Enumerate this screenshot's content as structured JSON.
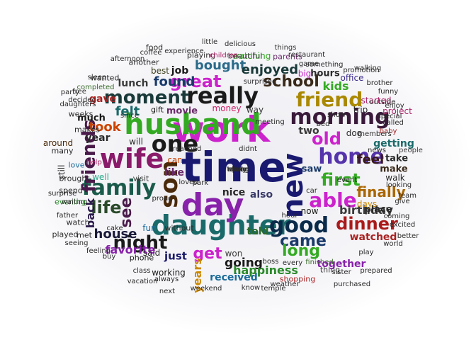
{
  "words": [
    {
      "text": "time",
      "color": "#191970"
    },
    {
      "text": "work",
      "color": "#cc22cc"
    },
    {
      "text": "husband",
      "color": "#33aa22"
    },
    {
      "text": "daughter",
      "color": "#1a6a6a"
    },
    {
      "text": "day",
      "color": "#8822aa"
    },
    {
      "text": "new",
      "color": "#191970"
    },
    {
      "text": "son",
      "color": "#4a2a0a"
    },
    {
      "text": "wife",
      "color": "#8a1a6a"
    },
    {
      "text": "family",
      "color": "#1a5a4a"
    },
    {
      "text": "one",
      "color": "#1a1a1a"
    },
    {
      "text": "really",
      "color": "#1a1a1a"
    },
    {
      "text": "morning",
      "color": "#3a1a3a"
    },
    {
      "text": "home",
      "color": "#5533aa"
    },
    {
      "text": "good",
      "color": "#0a2a4a"
    },
    {
      "text": "moment",
      "color": "#1a3a3a"
    },
    {
      "text": "friend",
      "color": "#aa8800"
    },
    {
      "text": "able",
      "color": "#cc22cc"
    },
    {
      "text": "friends",
      "color": "#4a1a4a"
    },
    {
      "text": "old",
      "color": "#cc22cc"
    },
    {
      "text": "first",
      "color": "#33aa22"
    },
    {
      "text": "night",
      "color": "#1a1a1a"
    },
    {
      "text": "great",
      "color": "#cc22cc"
    },
    {
      "text": "dinner",
      "color": "#aa1a1a"
    },
    {
      "text": "life",
      "color": "#2a4a2a"
    },
    {
      "text": "see",
      "color": "#4a1a4a"
    },
    {
      "text": "came",
      "color": "#1a3a6a"
    },
    {
      "text": "long",
      "color": "#33aa22"
    },
    {
      "text": "school",
      "color": "#3a2a1a"
    },
    {
      "text": "get",
      "color": "#cc22cc"
    },
    {
      "text": "finally",
      "color": "#aa6600"
    },
    {
      "text": "house",
      "color": "#1a1a3a"
    },
    {
      "text": "feel",
      "color": "#3a1a1a"
    },
    {
      "text": "found",
      "color": "#1a3a6a"
    },
    {
      "text": "bought",
      "color": "#2a6a8a"
    },
    {
      "text": "enjoyed",
      "color": "#1a3a3a"
    },
    {
      "text": "felt",
      "color": "#1a6a6a"
    },
    {
      "text": "took",
      "color": "#cc4400"
    },
    {
      "text": "birthday",
      "color": "#3a3a3a"
    },
    {
      "text": "going",
      "color": "#1a1a1a"
    },
    {
      "text": "happiness",
      "color": "#2a8a2a"
    },
    {
      "text": "years",
      "color": "#cc8800"
    },
    {
      "text": "kids",
      "color": "#33aa22"
    },
    {
      "text": "favorite",
      "color": "#8822aa"
    },
    {
      "text": "back",
      "color": "#2a1a4a"
    },
    {
      "text": "year",
      "color": "#2a2a2a"
    },
    {
      "text": "two",
      "color": "#3a3a3a"
    },
    {
      "text": "getting",
      "color": "#1a6a6a"
    },
    {
      "text": "together",
      "color": "#8822aa"
    },
    {
      "text": "watched",
      "color": "#aa2222"
    },
    {
      "text": "received",
      "color": "#1a6a9a"
    },
    {
      "text": "nice",
      "color": "#2a2a2a"
    },
    {
      "text": "also",
      "color": "#3a3a6a"
    },
    {
      "text": "just",
      "color": "#1a1a6a"
    },
    {
      "text": "told",
      "color": "#2a6a2a"
    },
    {
      "text": "lunch",
      "color": "#3a3a3a"
    },
    {
      "text": "job",
      "color": "#1a1a1a"
    },
    {
      "text": "best",
      "color": "#3a3a1a"
    },
    {
      "text": "hours",
      "color": "#2a2a2a"
    },
    {
      "text": "saw",
      "color": "#1a3a6a"
    },
    {
      "text": "make",
      "color": "#3a2a1a"
    },
    {
      "text": "take",
      "color": "#2a2a2a"
    },
    {
      "text": "place",
      "color": "#2a2a2a"
    },
    {
      "text": "days",
      "color": "#cc8800"
    },
    {
      "text": "movie",
      "color": "#6a2a6a"
    },
    {
      "text": "gave",
      "color": "#aa2222"
    },
    {
      "text": "much",
      "color": "#1a1a1a"
    },
    {
      "text": "like",
      "color": "#6a2a6a"
    },
    {
      "text": "will",
      "color": "#2a2a2a"
    },
    {
      "text": "said",
      "color": "#2a2a2a"
    },
    {
      "text": "working",
      "color": "#1a1a1a"
    },
    {
      "text": "fun",
      "color": "#1a6a9a"
    },
    {
      "text": "now",
      "color": "#1a1a1a"
    },
    {
      "text": "started",
      "color": "#aa2266"
    },
    {
      "text": "office",
      "color": "#3a2a8a"
    },
    {
      "text": "big",
      "color": "#cc22cc"
    },
    {
      "text": "watching",
      "color": "#33aa22"
    },
    {
      "text": "playing",
      "color": "#2a2a2a"
    },
    {
      "text": "beautiful",
      "color": "#3a3a3a"
    },
    {
      "text": "dog",
      "color": "#2a2a2a"
    },
    {
      "text": "makes",
      "color": "#2a2a2a"
    },
    {
      "text": "around",
      "color": "#4a2a0a"
    },
    {
      "text": "many",
      "color": "#2a2a2a"
    },
    {
      "text": "love",
      "color": "#1a6a9a"
    },
    {
      "text": "well",
      "color": "#2aaa8a"
    },
    {
      "text": "still",
      "color": "#2a2a2a"
    },
    {
      "text": "can",
      "color": "#cc4400"
    },
    {
      "text": "visit",
      "color": "#3a3a3a"
    },
    {
      "text": "walk",
      "color": "#2a2a2a"
    },
    {
      "text": "trip",
      "color": "#2a2a2a"
    },
    {
      "text": "money",
      "color": "#cc2266"
    },
    {
      "text": "way",
      "color": "#3a3a3a"
    },
    {
      "text": "gift",
      "color": "#1a1a1a"
    },
    {
      "text": "weeks",
      "color": "#2a2a2a"
    },
    {
      "text": "project",
      "color": "#aa2266"
    },
    {
      "text": "phone",
      "color": "#1a1a1a"
    },
    {
      "text": "won",
      "color": "#3a3a3a"
    },
    {
      "text": "thing",
      "color": "#3a3a3a"
    },
    {
      "text": "shopping",
      "color": "#aa2222"
    },
    {
      "text": "finished",
      "color": "#3a6a2a"
    },
    {
      "text": "without",
      "color": "#2a2a2a"
    },
    {
      "text": "met",
      "color": "#2a2a2a"
    },
    {
      "text": "watch",
      "color": "#2a2a2a"
    },
    {
      "text": "played",
      "color": "#2a2a2a"
    },
    {
      "text": "evening",
      "color": "#2a8a2a"
    },
    {
      "text": "spend",
      "color": "#2a2a2a"
    },
    {
      "text": "brought",
      "color": "#2a2a2a"
    },
    {
      "text": "baby",
      "color": "#aa2222"
    },
    {
      "text": "people",
      "color": "#3a3a3a"
    },
    {
      "text": "give",
      "color": "#2a2a2a"
    },
    {
      "text": "coming",
      "color": "#2a2a2a"
    },
    {
      "text": "team",
      "color": "#2a2a2a"
    },
    {
      "text": "party",
      "color": "#2a2a2a"
    },
    {
      "text": "completed",
      "color": "#3a6a2a"
    },
    {
      "text": "parents",
      "color": "#6a2a6a"
    },
    {
      "text": "game",
      "color": "#2a2a2a"
    },
    {
      "text": "something",
      "color": "#2a2a2a"
    },
    {
      "text": "things",
      "color": "#3a3a3a"
    },
    {
      "text": "another",
      "color": "#2a2a2a"
    },
    {
      "text": "coffee",
      "color": "#2a2a2a"
    },
    {
      "text": "food",
      "color": "#2a2a2a"
    },
    {
      "text": "wanted",
      "color": "#2a2a2a"
    },
    {
      "text": "help",
      "color": "#aa2266"
    },
    {
      "text": "since",
      "color": "#2a2a2a"
    },
    {
      "text": "know",
      "color": "#2a2a2a"
    },
    {
      "text": "children",
      "color": "#aa2266"
    },
    {
      "text": "weekend",
      "color": "#2a2a2a"
    },
    {
      "text": "always",
      "color": "#2a2a2a"
    },
    {
      "text": "seeing",
      "color": "#2a2a2a"
    },
    {
      "text": "feeling",
      "color": "#2a2a2a"
    },
    {
      "text": "class",
      "color": "#2a2a2a"
    },
    {
      "text": "sister",
      "color": "#2a2a2a"
    },
    {
      "text": "special",
      "color": "#2a2a2a"
    },
    {
      "text": "event",
      "color": "#2a2a2a"
    },
    {
      "text": "hour",
      "color": "#2a2a2a"
    },
    {
      "text": "car",
      "color": "#2a2a2a"
    },
    {
      "text": "news",
      "color": "#2a2a2a"
    },
    {
      "text": "called",
      "color": "#2a2a2a"
    },
    {
      "text": "enjoy",
      "color": "#2a2a2a"
    },
    {
      "text": "promotion",
      "color": "#2a2a2a"
    },
    {
      "text": "outside",
      "color": "#2a2a2a"
    },
    {
      "text": "looking",
      "color": "#2a2a2a"
    },
    {
      "text": "excited",
      "color": "#2a2a2a"
    },
    {
      "text": "better",
      "color": "#2a2a2a"
    },
    {
      "text": "purchased",
      "color": "#2a2a2a"
    },
    {
      "text": "weather",
      "color": "#2a2a2a"
    },
    {
      "text": "temple",
      "color": "#2a2a2a"
    },
    {
      "text": "vacation",
      "color": "#2a2a2a"
    },
    {
      "text": "waiting",
      "color": "#2a2a2a"
    },
    {
      "text": "sleep",
      "color": "#2a2a2a"
    },
    {
      "text": "free",
      "color": "#2a2a2a"
    },
    {
      "text": "decided",
      "color": "#2a2a2a"
    },
    {
      "text": "daughters",
      "color": "#2a2a2a"
    },
    {
      "text": "little",
      "color": "#2a2a2a"
    },
    {
      "text": "delicious",
      "color": "#2a2a2a"
    },
    {
      "text": "restaurant",
      "color": "#2a2a2a"
    },
    {
      "text": "afternoon",
      "color": "#2a2a2a"
    },
    {
      "text": "experience",
      "color": "#2a2a2a"
    },
    {
      "text": "surprised",
      "color": "#2a2a2a"
    },
    {
      "text": "brother",
      "color": "#2a2a2a"
    },
    {
      "text": "walking",
      "color": "#2a2a2a"
    },
    {
      "text": "show",
      "color": "#2a2a2a"
    },
    {
      "text": "bed",
      "color": "#2a2a2a"
    },
    {
      "text": "meeting",
      "color": "#2a2a2a"
    },
    {
      "text": "park",
      "color": "#2a2a2a"
    },
    {
      "text": "loved",
      "color": "#2a2a2a"
    },
    {
      "text": "proud",
      "color": "#2a2a2a"
    },
    {
      "text": "cake",
      "color": "#2a2a2a"
    },
    {
      "text": "buy",
      "color": "#2a2a2a"
    },
    {
      "text": "boss",
      "color": "#2a2a2a"
    },
    {
      "text": "every",
      "color": "#2a2a2a"
    },
    {
      "text": "next",
      "color": "#2a2a2a"
    },
    {
      "text": "play",
      "color": "#2a2a2a"
    },
    {
      "text": "world",
      "color": "#2a2a2a"
    },
    {
      "text": "prepared",
      "color": "#2a2a2a"
    },
    {
      "text": "funny",
      "color": "#2a2a2a"
    },
    {
      "text": "members",
      "color": "#2a2a2a"
    },
    {
      "text": "didnt",
      "color": "#2a2a2a"
    },
    {
      "text": "reached",
      "color": "#2a2a2a"
    },
    {
      "text": "surprise",
      "color": "#2a2a2a"
    },
    {
      "text": "father",
      "color": "#2a2a2a"
    },
    {
      "text": "early",
      "color": "#2a2a2a"
    },
    {
      "text": "never",
      "color": "#2a2a2a"
    },
    {
      "text": "cat",
      "color": "#2a2a2a"
    },
    {
      "text": "done",
      "color": "#2a2a2a"
    },
    {
      "text": "put",
      "color": "#2a2a2a"
    },
    {
      "text": "taking",
      "color": "#2a2a2a"
    },
    {
      "text": "talked",
      "color": "#2a2a2a"
    }
  ]
}
